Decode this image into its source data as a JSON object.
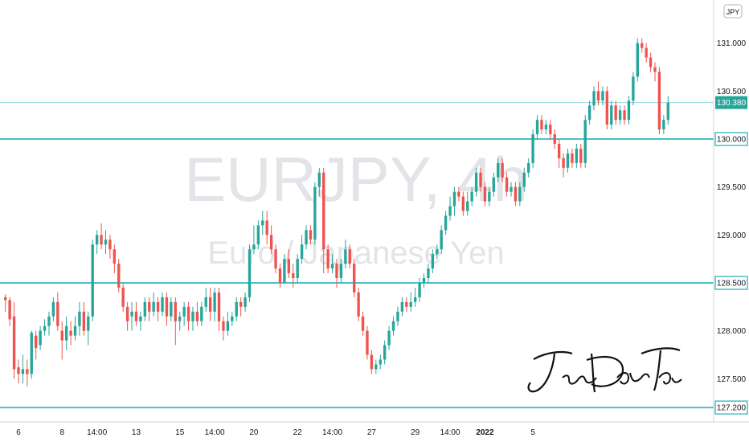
{
  "watermark": {
    "symbol": "EURJPY, 4h",
    "description": "Euro / Japanese Yen"
  },
  "currency_badge": "JPY",
  "signature": "JinDaoTai",
  "colors": {
    "up": "#26a69a",
    "down": "#ef5350",
    "line": "#4bbfc3",
    "current_tag": "#26a69a"
  },
  "chart_data": {
    "type": "candlestick",
    "symbol": "EURJPY",
    "timeframe": "4h",
    "y_axis": {
      "min": 127.05,
      "max": 131.45,
      "ticks": [
        "127.500",
        "128.000",
        "128.500",
        "129.000",
        "129.500",
        "130.000",
        "130.500",
        "131.000"
      ],
      "tick_values": [
        127.5,
        128.0,
        128.5,
        129.0,
        129.5,
        130.0,
        130.5,
        131.0
      ]
    },
    "x_axis": {
      "ticks": [
        {
          "label": "6",
          "index": 3
        },
        {
          "label": "8",
          "index": 13
        },
        {
          "label": "14:00",
          "index": 21
        },
        {
          "label": "13",
          "index": 30
        },
        {
          "label": "15",
          "index": 40
        },
        {
          "label": "14:00",
          "index": 48
        },
        {
          "label": "20",
          "index": 57
        },
        {
          "label": "22",
          "index": 67
        },
        {
          "label": "14:00",
          "index": 75
        },
        {
          "label": "27",
          "index": 84
        },
        {
          "label": "29",
          "index": 94
        },
        {
          "label": "14:00",
          "index": 102
        },
        {
          "label": "2022",
          "index": 110,
          "bold": true
        },
        {
          "label": "5",
          "index": 121
        }
      ]
    },
    "horizontal_levels": [
      {
        "value": 130.0,
        "label": "130.000"
      },
      {
        "value": 128.5,
        "label": "128.500"
      },
      {
        "value": 127.2,
        "label": "127.200"
      }
    ],
    "current_price": {
      "value": 130.38,
      "label": "130.380"
    },
    "candles": [
      [
        128.35,
        128.32,
        128.38,
        128.2
      ],
      [
        128.32,
        128.12,
        128.35,
        128.05
      ],
      [
        128.15,
        127.6,
        128.3,
        127.5
      ],
      [
        127.62,
        127.55,
        127.7,
        127.45
      ],
      [
        127.55,
        127.6,
        127.75,
        127.45
      ],
      [
        127.6,
        127.55,
        127.7,
        127.42
      ],
      [
        127.55,
        127.98,
        128.0,
        127.5
      ],
      [
        127.95,
        127.82,
        128.0,
        127.7
      ],
      [
        127.85,
        128.0,
        128.05,
        127.8
      ],
      [
        128.0,
        128.05,
        128.12,
        127.95
      ],
      [
        128.05,
        128.15,
        128.2,
        127.95
      ],
      [
        128.15,
        128.3,
        128.35,
        128.1
      ],
      [
        128.3,
        128.05,
        128.4,
        128.0
      ],
      [
        128.0,
        127.9,
        128.1,
        127.7
      ],
      [
        127.9,
        128.05,
        128.15,
        127.8
      ],
      [
        128.0,
        127.95,
        128.1,
        127.85
      ],
      [
        127.95,
        128.05,
        128.15,
        127.9
      ],
      [
        128.05,
        128.2,
        128.3,
        127.95
      ],
      [
        128.2,
        128.0,
        128.3,
        127.95
      ],
      [
        128.0,
        128.15,
        128.2,
        127.85
      ],
      [
        128.15,
        128.9,
        128.95,
        128.1
      ],
      [
        128.9,
        129.0,
        129.05,
        128.8
      ],
      [
        129.0,
        128.9,
        129.12,
        128.85
      ],
      [
        128.9,
        128.95,
        129.05,
        128.8
      ],
      [
        128.95,
        128.85,
        129.0,
        128.75
      ],
      [
        128.85,
        128.7,
        128.9,
        128.6
      ],
      [
        128.7,
        128.45,
        128.75,
        128.4
      ],
      [
        128.45,
        128.25,
        128.5,
        128.2
      ],
      [
        128.25,
        128.1,
        128.3,
        128.0
      ],
      [
        128.15,
        128.2,
        128.3,
        128.0
      ],
      [
        128.2,
        128.1,
        128.3,
        128.05
      ],
      [
        128.1,
        128.15,
        128.2,
        128.0
      ],
      [
        128.15,
        128.3,
        128.35,
        128.1
      ],
      [
        128.3,
        128.2,
        128.35,
        128.1
      ],
      [
        128.2,
        128.3,
        128.4,
        128.15
      ],
      [
        128.3,
        128.2,
        128.35,
        128.1
      ],
      [
        128.2,
        128.35,
        128.4,
        128.15
      ],
      [
        128.35,
        128.15,
        128.4,
        128.05
      ],
      [
        128.15,
        128.3,
        128.35,
        128.1
      ],
      [
        128.3,
        128.1,
        128.35,
        127.85
      ],
      [
        128.1,
        128.15,
        128.2,
        128.0
      ],
      [
        128.15,
        128.25,
        128.3,
        128.05
      ],
      [
        128.25,
        128.1,
        128.3,
        128.0
      ],
      [
        128.1,
        128.2,
        128.25,
        128.0
      ],
      [
        128.2,
        128.1,
        128.3,
        128.05
      ],
      [
        128.1,
        128.25,
        128.3,
        128.05
      ],
      [
        128.25,
        128.35,
        128.45,
        128.2
      ],
      [
        128.35,
        128.2,
        128.45,
        128.1
      ],
      [
        128.2,
        128.4,
        128.45,
        128.1
      ],
      [
        128.4,
        128.1,
        128.45,
        128.0
      ],
      [
        128.1,
        128.0,
        128.15,
        127.9
      ],
      [
        128.0,
        128.1,
        128.2,
        127.95
      ],
      [
        128.1,
        128.15,
        128.2,
        128.05
      ],
      [
        128.15,
        128.3,
        128.35,
        128.1
      ],
      [
        128.3,
        128.25,
        128.35,
        128.15
      ],
      [
        128.25,
        128.35,
        128.4,
        128.2
      ],
      [
        128.35,
        128.85,
        128.9,
        128.3
      ],
      [
        128.85,
        128.9,
        129.1,
        128.8
      ],
      [
        128.9,
        129.1,
        129.15,
        128.85
      ],
      [
        129.1,
        129.15,
        129.25,
        129.0
      ],
      [
        129.15,
        129.0,
        129.25,
        128.9
      ],
      [
        129.0,
        128.85,
        129.1,
        128.8
      ],
      [
        128.85,
        128.65,
        128.9,
        128.6
      ],
      [
        128.65,
        128.5,
        128.7,
        128.45
      ],
      [
        128.5,
        128.75,
        128.8,
        128.5
      ],
      [
        128.75,
        128.6,
        128.85,
        128.55
      ],
      [
        128.6,
        128.55,
        128.7,
        128.45
      ],
      [
        128.55,
        128.75,
        128.8,
        128.5
      ],
      [
        128.75,
        128.9,
        129.0,
        128.7
      ],
      [
        128.9,
        129.05,
        129.1,
        128.85
      ],
      [
        129.05,
        128.95,
        129.1,
        128.9
      ],
      [
        128.95,
        129.5,
        129.55,
        128.9
      ],
      [
        129.5,
        129.65,
        129.7,
        129.4
      ],
      [
        129.65,
        128.85,
        129.7,
        128.6
      ],
      [
        128.85,
        128.65,
        128.9,
        128.6
      ],
      [
        128.65,
        128.7,
        128.8,
        128.6
      ],
      [
        128.7,
        128.55,
        128.75,
        128.45
      ],
      [
        128.55,
        128.7,
        128.75,
        128.5
      ],
      [
        128.7,
        128.85,
        128.95,
        128.65
      ],
      [
        128.85,
        128.7,
        128.9,
        128.65
      ],
      [
        128.7,
        128.4,
        128.75,
        128.35
      ],
      [
        128.4,
        128.15,
        128.45,
        128.1
      ],
      [
        128.15,
        128.0,
        128.2,
        127.95
      ],
      [
        128.0,
        127.75,
        128.05,
        127.7
      ],
      [
        127.75,
        127.6,
        127.8,
        127.55
      ],
      [
        127.6,
        127.65,
        127.7,
        127.55
      ],
      [
        127.65,
        127.7,
        127.75,
        127.6
      ],
      [
        127.7,
        127.85,
        127.9,
        127.65
      ],
      [
        127.85,
        128.0,
        128.05,
        127.8
      ],
      [
        128.0,
        128.1,
        128.15,
        127.95
      ],
      [
        128.1,
        128.2,
        128.25,
        128.05
      ],
      [
        128.2,
        128.3,
        128.35,
        128.15
      ],
      [
        128.3,
        128.25,
        128.35,
        128.2
      ],
      [
        128.25,
        128.3,
        128.4,
        128.2
      ],
      [
        128.3,
        128.35,
        128.45,
        128.25
      ],
      [
        128.35,
        128.5,
        128.55,
        128.3
      ],
      [
        128.5,
        128.55,
        128.6,
        128.45
      ],
      [
        128.55,
        128.65,
        128.7,
        128.5
      ],
      [
        128.65,
        128.8,
        128.85,
        128.6
      ],
      [
        128.8,
        128.85,
        128.9,
        128.75
      ],
      [
        128.85,
        129.05,
        129.1,
        128.8
      ],
      [
        129.05,
        129.2,
        129.25,
        129.0
      ],
      [
        129.2,
        129.3,
        129.4,
        129.15
      ],
      [
        129.3,
        129.45,
        129.5,
        129.2
      ],
      [
        129.45,
        129.4,
        129.5,
        129.35
      ],
      [
        129.4,
        129.25,
        129.45,
        129.2
      ],
      [
        129.25,
        129.35,
        129.45,
        129.2
      ],
      [
        129.35,
        129.45,
        129.5,
        129.3
      ],
      [
        129.45,
        129.65,
        129.7,
        129.4
      ],
      [
        129.65,
        129.5,
        129.7,
        129.45
      ],
      [
        129.5,
        129.35,
        129.55,
        129.3
      ],
      [
        129.35,
        129.45,
        129.5,
        129.3
      ],
      [
        129.45,
        129.6,
        129.65,
        129.4
      ],
      [
        129.6,
        129.75,
        129.8,
        129.55
      ],
      [
        129.75,
        129.6,
        129.8,
        129.55
      ],
      [
        129.6,
        129.45,
        129.65,
        129.4
      ],
      [
        129.45,
        129.5,
        129.55,
        129.4
      ],
      [
        129.5,
        129.35,
        129.55,
        129.3
      ],
      [
        129.35,
        129.5,
        129.55,
        129.3
      ],
      [
        129.5,
        129.65,
        129.7,
        129.45
      ],
      [
        129.65,
        129.75,
        129.8,
        129.6
      ],
      [
        129.75,
        130.05,
        130.1,
        129.7
      ],
      [
        130.05,
        130.2,
        130.25,
        130.0
      ],
      [
        130.2,
        130.1,
        130.25,
        130.05
      ],
      [
        130.1,
        130.15,
        130.2,
        130.05
      ],
      [
        130.15,
        130.05,
        130.2,
        130.0
      ],
      [
        130.05,
        129.95,
        130.1,
        129.9
      ],
      [
        129.95,
        129.8,
        130.0,
        129.7
      ],
      [
        129.8,
        129.7,
        129.85,
        129.6
      ],
      [
        129.7,
        129.85,
        129.9,
        129.65
      ],
      [
        129.85,
        129.75,
        129.9,
        129.7
      ],
      [
        129.75,
        129.9,
        129.95,
        129.7
      ],
      [
        129.9,
        129.75,
        129.95,
        129.7
      ],
      [
        129.75,
        130.2,
        130.25,
        129.7
      ],
      [
        130.2,
        130.35,
        130.4,
        130.15
      ],
      [
        130.35,
        130.5,
        130.55,
        130.3
      ],
      [
        130.5,
        130.4,
        130.6,
        130.35
      ],
      [
        130.4,
        130.5,
        130.55,
        130.35
      ],
      [
        130.5,
        130.15,
        130.55,
        130.1
      ],
      [
        130.15,
        130.35,
        130.4,
        130.1
      ],
      [
        130.35,
        130.2,
        130.4,
        130.15
      ],
      [
        130.2,
        130.3,
        130.35,
        130.15
      ],
      [
        130.3,
        130.2,
        130.35,
        130.15
      ],
      [
        130.2,
        130.4,
        130.45,
        130.15
      ],
      [
        130.4,
        130.65,
        130.7,
        130.35
      ],
      [
        130.65,
        131.0,
        131.05,
        130.6
      ],
      [
        131.0,
        130.95,
        131.05,
        130.9
      ],
      [
        130.95,
        130.85,
        131.0,
        130.8
      ],
      [
        130.85,
        130.75,
        130.9,
        130.7
      ],
      [
        130.75,
        130.7,
        130.8,
        130.6
      ],
      [
        130.7,
        130.1,
        130.75,
        130.05
      ],
      [
        130.1,
        130.2,
        130.25,
        130.05
      ],
      [
        130.2,
        130.38,
        130.45,
        130.15
      ]
    ]
  }
}
